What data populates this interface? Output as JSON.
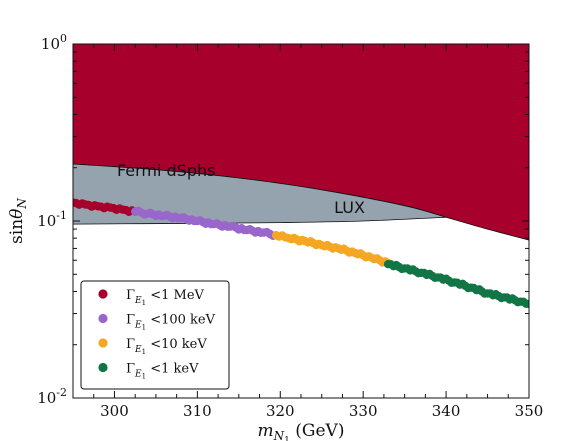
{
  "chart_data": {
    "type": "scatter",
    "xlabel": "m_N1 (GeV)",
    "ylabel": "sinθ_N",
    "xlim": [
      295,
      350
    ],
    "ylim": [
      0.01,
      1
    ],
    "yscale": "log",
    "x_ticks": [
      300,
      310,
      320,
      330,
      340,
      350
    ],
    "x_tick_labels": [
      "300",
      "310",
      "320",
      "330",
      "340",
      "350"
    ],
    "y_ticks": [
      0.01,
      0.1,
      1
    ],
    "y_tick_labels": [
      {
        "base": "10",
        "exp": "-2"
      },
      {
        "base": "10",
        "exp": "-1"
      },
      {
        "base": "10",
        "exp": "0"
      }
    ],
    "regions": [
      {
        "name": "Fermi dSphs",
        "label": "Fermi dSphs",
        "color": "#a8002c",
        "lower_boundary": [
          [
            295,
            0.21
          ],
          [
            305,
            0.195
          ],
          [
            315,
            0.175
          ],
          [
            325,
            0.15
          ],
          [
            335,
            0.122
          ],
          [
            340,
            0.105
          ],
          [
            345,
            0.09
          ],
          [
            350,
            0.078
          ]
        ],
        "fills_to": "top"
      },
      {
        "name": "LUX",
        "label": "LUX",
        "color": "#95a3ae",
        "upper_boundary": [
          [
            295,
            0.21
          ],
          [
            305,
            0.195
          ],
          [
            315,
            0.175
          ],
          [
            325,
            0.15
          ],
          [
            335,
            0.122
          ],
          [
            340,
            0.105
          ]
        ],
        "lower_boundary": [
          [
            295,
            0.096
          ],
          [
            310,
            0.097
          ],
          [
            320,
            0.098
          ],
          [
            330,
            0.1
          ],
          [
            340,
            0.105
          ]
        ]
      }
    ],
    "series": [
      {
        "name": "Γ_E1 <1 MeV",
        "color": "#a8002c",
        "x": [
          295,
          296.5,
          298,
          299.5,
          301,
          302.5
        ],
        "y": [
          0.127,
          0.124,
          0.121,
          0.119,
          0.116,
          0.113
        ]
      },
      {
        "name": "Γ_E1 <100 keV",
        "color": "#9966cc",
        "x": [
          302.5,
          304,
          306,
          308,
          310,
          312,
          314,
          316,
          318,
          319.5
        ],
        "y": [
          0.113,
          0.11,
          0.107,
          0.104,
          0.1,
          0.096,
          0.093,
          0.089,
          0.086,
          0.083
        ]
      },
      {
        "name": "Γ_E1 <10 keV",
        "color": "#f5a623",
        "x": [
          319.5,
          321,
          323,
          325,
          327,
          329,
          331,
          333
        ],
        "y": [
          0.083,
          0.08,
          0.077,
          0.073,
          0.07,
          0.066,
          0.062,
          0.058
        ]
      },
      {
        "name": "Γ_E1 <1 keV",
        "color": "#127546",
        "x": [
          333,
          335,
          337,
          339,
          341,
          343,
          345,
          347,
          349,
          350
        ],
        "y": [
          0.057,
          0.054,
          0.051,
          0.048,
          0.045,
          0.042,
          0.039,
          0.037,
          0.035,
          0.034
        ]
      }
    ],
    "legend": {
      "placement": "lower-left",
      "entries": [
        {
          "symbol": "Γ",
          "sub": "E",
          "subsub": "1",
          "text": "<1 MeV",
          "color": "#a8002c"
        },
        {
          "symbol": "Γ",
          "sub": "E",
          "subsub": "1",
          "text": "<100 keV",
          "color": "#9966cc"
        },
        {
          "symbol": "Γ",
          "sub": "E",
          "subsub": "1",
          "text": "<10 keV",
          "color": "#f5a623"
        },
        {
          "symbol": "Γ",
          "sub": "E",
          "subsub": "1",
          "text": "<1 keV",
          "color": "#127546"
        }
      ]
    }
  }
}
